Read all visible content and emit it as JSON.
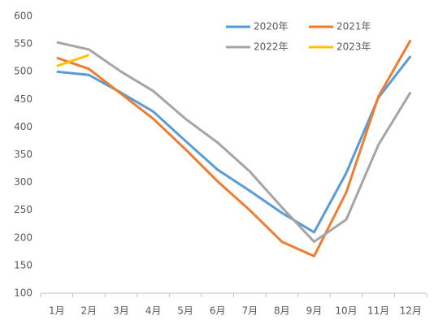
{
  "chart_data": {
    "type": "line",
    "categories": [
      "1月",
      "2月",
      "3月",
      "4月",
      "5月",
      "6月",
      "7月",
      "8月",
      "9月",
      "10月",
      "11月",
      "12月"
    ],
    "series": [
      {
        "name": "2020年",
        "color": "#5b9bd5",
        "values": [
          500,
          494,
          462,
          428,
          375,
          323,
          285,
          245,
          210,
          317,
          453,
          528
        ]
      },
      {
        "name": "2021年",
        "color": "#ed7d31",
        "values": [
          525,
          505,
          460,
          415,
          360,
          302,
          250,
          193,
          167,
          282,
          455,
          557
        ]
      },
      {
        "name": "2022年",
        "color": "#a5a5a5",
        "values": [
          553,
          540,
          500,
          465,
          415,
          372,
          320,
          255,
          193,
          233,
          368,
          463
        ]
      },
      {
        "name": "2023年",
        "color": "#ffc000",
        "values": [
          510,
          530,
          null,
          null,
          null,
          null,
          null,
          null,
          null,
          null,
          null,
          null
        ]
      }
    ],
    "ylim": [
      100,
      600
    ],
    "yticks": [
      100,
      150,
      200,
      250,
      300,
      350,
      400,
      450,
      500,
      550,
      600
    ],
    "grid": false,
    "legend": "top-right"
  }
}
